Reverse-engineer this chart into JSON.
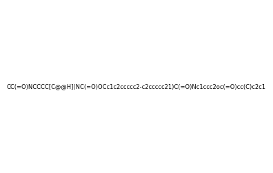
{
  "smiles": "CC(=O)NCCCC[C@@H](NC(=O)OCc1c2ccccc2-c2ccccc21)C(=O)Nc1ccc2oc(=O)cc(C)c2c1",
  "image_size": 300,
  "background_color": "#e8e8e8",
  "title": ""
}
